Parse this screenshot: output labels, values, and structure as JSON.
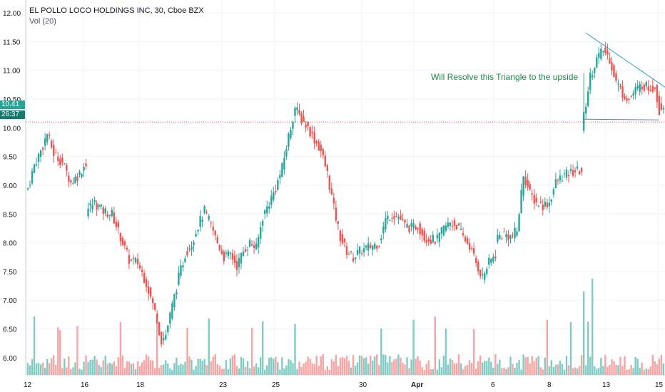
{
  "header": {
    "symbol_line": "EL POLLO LOCO HOLDINGS INC, 30, Cboe BZX",
    "volume_line": "Vol (20)"
  },
  "annotation": {
    "text": "Will Resolve this Triangle to the upside"
  },
  "price_tags": {
    "last_price": "10.41",
    "countdown": "26:37"
  },
  "colors": {
    "up": "#26a69a",
    "down": "#ef5350",
    "up_volume": "#80cbc4",
    "down_volume": "#f5a5a3",
    "grid": "#f0f3fa",
    "line": "#26a6c4",
    "tag": "#26a69a",
    "level": "#ef5350"
  },
  "chart_data": {
    "type": "candlestick",
    "y_axis": {
      "range": [
        5.7,
        12.1
      ],
      "ticks": [
        "12.00",
        "11.50",
        "11.00",
        "10.50",
        "10.00",
        "9.50",
        "9.00",
        "8.50",
        "8.00",
        "7.50",
        "7.00",
        "6.50",
        "6.00"
      ]
    },
    "x_ticks": [
      {
        "label": "12",
        "bold": false
      },
      {
        "label": "16",
        "bold": false
      },
      {
        "label": "18",
        "bold": false
      },
      {
        "label": "23",
        "bold": false
      },
      {
        "label": "25",
        "bold": false
      },
      {
        "label": "30",
        "bold": false
      },
      {
        "label": "Apr",
        "bold": true
      },
      {
        "label": "6",
        "bold": false
      },
      {
        "label": "8",
        "bold": false
      },
      {
        "label": "13",
        "bold": false
      },
      {
        "label": "15",
        "bold": false
      }
    ],
    "anchors": [
      [
        0,
        8.95
      ],
      [
        3,
        9.35
      ],
      [
        6,
        9.6
      ],
      [
        9,
        9.9
      ],
      [
        12,
        9.55
      ],
      [
        16,
        9.4
      ],
      [
        20,
        9.05
      ],
      [
        24,
        9.2
      ],
      [
        27,
        9.4
      ],
      [
        28,
        8.6
      ],
      [
        31,
        8.7
      ],
      [
        35,
        8.55
      ],
      [
        39,
        8.5
      ],
      [
        43,
        8.1
      ],
      [
        47,
        7.7
      ],
      [
        51,
        7.65
      ],
      [
        55,
        7.3
      ],
      [
        59,
        6.8
      ],
      [
        62,
        6.3
      ],
      [
        64,
        6.4
      ],
      [
        67,
        6.9
      ],
      [
        70,
        7.4
      ],
      [
        73,
        7.8
      ],
      [
        76,
        8.0
      ],
      [
        79,
        8.3
      ],
      [
        82,
        8.55
      ],
      [
        85,
        8.3
      ],
      [
        88,
        8.0
      ],
      [
        91,
        7.75
      ],
      [
        94,
        7.8
      ],
      [
        97,
        7.6
      ],
      [
        100,
        7.85
      ],
      [
        103,
        8.0
      ],
      [
        106,
        7.9
      ],
      [
        109,
        8.45
      ],
      [
        112,
        8.7
      ],
      [
        115,
        8.95
      ],
      [
        118,
        9.3
      ],
      [
        121,
        9.85
      ],
      [
        124,
        10.35
      ],
      [
        127,
        10.15
      ],
      [
        130,
        10.0
      ],
      [
        133,
        9.8
      ],
      [
        136,
        9.6
      ],
      [
        139,
        9.2
      ],
      [
        142,
        8.6
      ],
      [
        145,
        8.1
      ],
      [
        148,
        7.85
      ],
      [
        151,
        7.75
      ],
      [
        154,
        7.85
      ],
      [
        157,
        7.9
      ],
      [
        160,
        7.95
      ],
      [
        163,
        8.0
      ],
      [
        166,
        8.4
      ],
      [
        169,
        8.5
      ],
      [
        172,
        8.45
      ],
      [
        175,
        8.3
      ],
      [
        178,
        8.25
      ],
      [
        181,
        8.3
      ],
      [
        184,
        8.1
      ],
      [
        187,
        8.05
      ],
      [
        190,
        8.05
      ],
      [
        193,
        8.25
      ],
      [
        196,
        8.35
      ],
      [
        199,
        8.3
      ],
      [
        202,
        8.1
      ],
      [
        205,
        7.95
      ],
      [
        208,
        7.65
      ],
      [
        211,
        7.4
      ],
      [
        214,
        7.65
      ],
      [
        217,
        7.8
      ],
      [
        218,
        8.1
      ],
      [
        221,
        8.15
      ],
      [
        224,
        8.1
      ],
      [
        227,
        8.2
      ],
      [
        230,
        9.2
      ],
      [
        233,
        8.85
      ],
      [
        236,
        8.7
      ],
      [
        239,
        8.65
      ],
      [
        242,
        8.7
      ],
      [
        245,
        9.05
      ],
      [
        248,
        9.15
      ],
      [
        251,
        9.2
      ],
      [
        254,
        9.25
      ],
      [
        257,
        9.25
      ],
      [
        258,
        10.2
      ],
      [
        261,
        10.9
      ],
      [
        264,
        11.2
      ],
      [
        267,
        11.35
      ],
      [
        270,
        11.2
      ],
      [
        273,
        10.8
      ],
      [
        276,
        10.6
      ],
      [
        279,
        10.5
      ],
      [
        282,
        10.65
      ],
      [
        285,
        10.75
      ],
      [
        288,
        10.7
      ],
      [
        291,
        10.72
      ],
      [
        293,
        10.3
      ],
      [
        295,
        10.41
      ]
    ],
    "gaps": [
      27,
      217,
      257,
      293
    ],
    "breakout_bar": {
      "index": 258,
      "open": 9.95,
      "high": 10.95,
      "low": 9.9,
      "close": 10.75
    },
    "resistance_line": {
      "from": [
        11.65,
        259
      ],
      "to": [
        10.7,
        296
      ]
    },
    "support_line": {
      "from": [
        10.15,
        258
      ],
      "to": [
        10.15,
        293
      ]
    },
    "level_line": 10.1
  }
}
